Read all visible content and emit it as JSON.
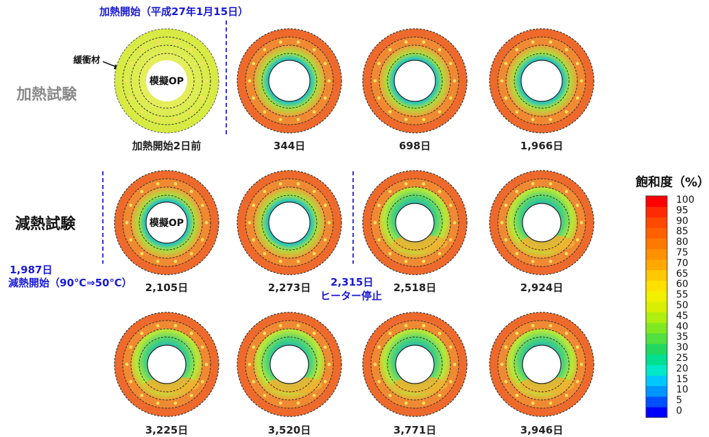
{
  "annotations": {
    "heating_start": "加熱開始（平成27年1月15日）",
    "buffer_label": "緩衝材",
    "mock_op": "模擬OP",
    "heating_test": "加熱試験",
    "cooling_test": "減熱試験",
    "cooling_start_day": "1,987日",
    "cooling_start_text": "減熱開始（90℃⇒50℃）",
    "heater_stop_day": "2,315日",
    "heater_stop_text": "ヒーター停止"
  },
  "panels": [
    {
      "label": "加熱開始2日前",
      "inner": "mock",
      "showMockLabel": true
    },
    {
      "label": "344日",
      "inner": "blue"
    },
    {
      "label": "698日",
      "inner": "blue"
    },
    {
      "label": "1,966日",
      "inner": "blue"
    },
    {
      "label": "2,105日",
      "inner": "blue",
      "showMockLabel": true
    },
    {
      "label": "2,273日",
      "inner": "blue"
    },
    {
      "label": "2,518日",
      "inner": "green"
    },
    {
      "label": "2,924日",
      "inner": "green"
    },
    {
      "label": "3,225日",
      "inner": "green"
    },
    {
      "label": "3,520日",
      "inner": "green"
    },
    {
      "label": "3,771日",
      "inner": "green"
    },
    {
      "label": "3,946日",
      "inner": "green"
    }
  ],
  "colorbar": {
    "title": "飽和度（%）",
    "ticks": [
      "100",
      "95",
      "90",
      "85",
      "80",
      "75",
      "70",
      "65",
      "60",
      "55",
      "50",
      "45",
      "40",
      "35",
      "30",
      "25",
      "20",
      "15",
      "10",
      "5",
      "0"
    ],
    "colors": [
      "#0000ff",
      "#0050ff",
      "#0095ff",
      "#00c8ff",
      "#00e8c8",
      "#00e090",
      "#20d860",
      "#50e040",
      "#80e820",
      "#b0f010",
      "#d8f000",
      "#f0f000",
      "#ffe000",
      "#ffc800",
      "#ffa800",
      "#ff9000",
      "#ff7800",
      "#ff6000",
      "#ff4800",
      "#ff2a00",
      "#ff0000"
    ]
  }
}
